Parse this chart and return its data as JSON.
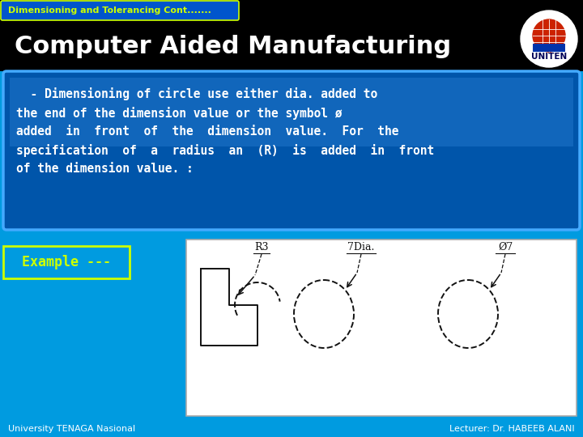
{
  "bg_color": "#009BE0",
  "header_bg": "#000000",
  "header_tab_bg": "#0055CC",
  "header_tab_text": "Dimensioning and Tolerancing Cont.......",
  "header_tab_text_color": "#CCFF00",
  "title_text": "Computer Aided Manufacturing",
  "title_color": "#FFFFFF",
  "title_fontsize": 22,
  "textbox_bg_top": "#1166BB",
  "textbox_bg_bot": "#003388",
  "textbox_border": "#44AAFF",
  "textbox_text_color": "#FFFFFF",
  "textbox_content": "  - Dimensioning of circle use either dia. added to\nthe end of the dimension value or the symbol ø\nadded  in  front  of  the  dimension  value.  For  the\nspecification  of  a  radius  an  (R)  is  added  in  front\nof the dimension value. :",
  "example_text": "Example ---",
  "example_text_color": "#CCFF00",
  "example_border_color": "#CCFF00",
  "footer_text_left": "University TENAGA Nasional",
  "footer_text_right": "Lecturer: Dr. HABEEB ALANI",
  "footer_text_color": "#FFFFFF",
  "diagram_bg": "#FFFFFF"
}
